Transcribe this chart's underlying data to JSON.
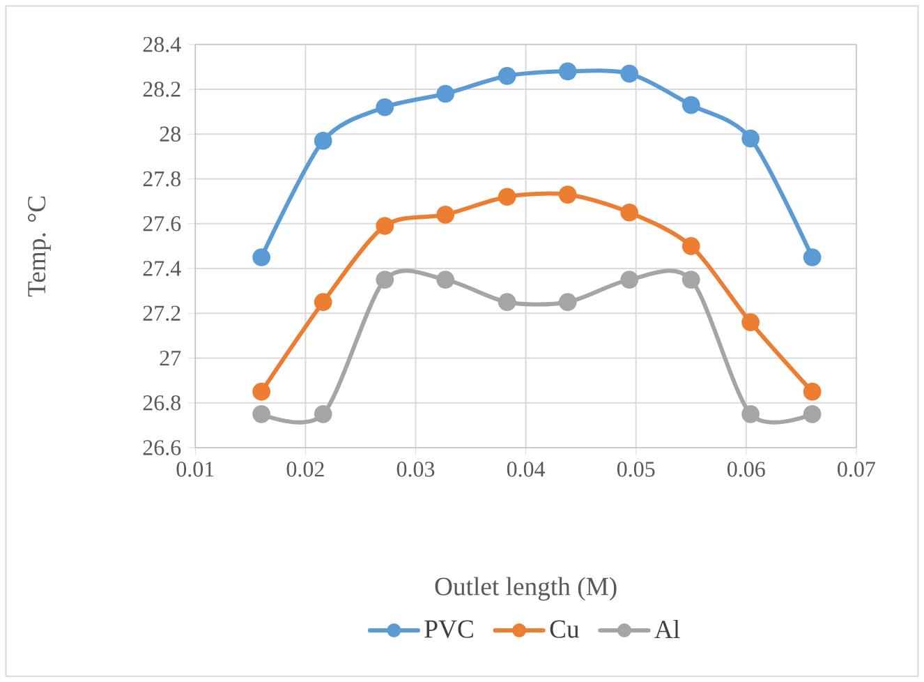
{
  "chart_data": {
    "type": "line",
    "xlabel": "Outlet length (M)",
    "ylabel": "Temp. °C",
    "xlim": [
      0.01,
      0.07
    ],
    "xticks": [
      0.01,
      0.02,
      0.03,
      0.04,
      0.05,
      0.06,
      0.07
    ],
    "ylim": [
      26.6,
      28.4
    ],
    "yticks": [
      26.6,
      26.8,
      27,
      27.2,
      27.4,
      27.6,
      27.8,
      28,
      28.2,
      28.4
    ],
    "x": [
      0.016,
      0.0216,
      0.0272,
      0.0327,
      0.0383,
      0.0438,
      0.0494,
      0.055,
      0.0604,
      0.066
    ],
    "series": [
      {
        "name": "PVC",
        "color": "#5b9bd5",
        "values": [
          27.45,
          27.97,
          28.12,
          28.18,
          28.26,
          28.28,
          28.27,
          28.13,
          27.98,
          27.45
        ]
      },
      {
        "name": "Cu",
        "color": "#ed7d31",
        "values": [
          26.85,
          27.25,
          27.59,
          27.64,
          27.72,
          27.73,
          27.65,
          27.5,
          27.16,
          26.85
        ]
      },
      {
        "name": "Al",
        "color": "#a5a5a5",
        "values": [
          26.75,
          26.75,
          27.35,
          27.35,
          27.25,
          27.25,
          27.35,
          27.35,
          26.75,
          26.75
        ]
      }
    ],
    "grid": true,
    "legend": "bottom",
    "marker": "circle",
    "line_style": "solid"
  }
}
